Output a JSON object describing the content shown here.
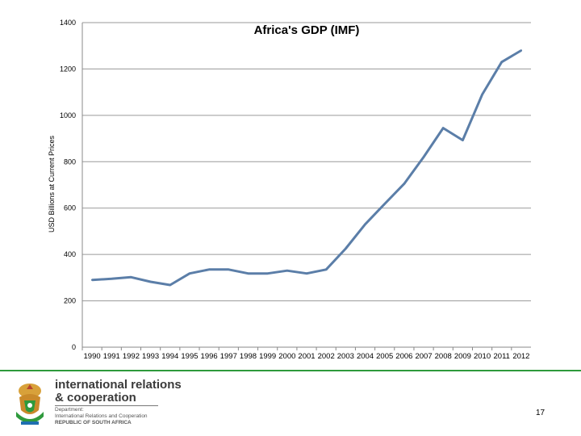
{
  "chart_data": {
    "type": "line",
    "title": "Africa's GDP (IMF)",
    "xlabel": "",
    "ylabel": "USD Billions at Current Prices",
    "x": [
      "1990",
      "1991",
      "1992",
      "1993",
      "1994",
      "1995",
      "1996",
      "1997",
      "1998",
      "1999",
      "2000",
      "2001",
      "2002",
      "2003",
      "2004",
      "2005",
      "2006",
      "2007",
      "2008",
      "2009",
      "2010",
      "2011",
      "2012"
    ],
    "series": [
      {
        "values": [
          290,
          295,
          302,
          282,
          268,
          318,
          335,
          335,
          318,
          318,
          330,
          318,
          335,
          425,
          530,
          618,
          705,
          820,
          945,
          893,
          1090,
          1230,
          1280
        ]
      }
    ],
    "ylim": [
      0,
      1400
    ],
    "yticks": [
      "0",
      "200",
      "400",
      "600",
      "800",
      "1000",
      "1200",
      "1400"
    ],
    "grid": true,
    "legend": "none",
    "line_color": "#5b7ea8",
    "grid_color": "#9a9a9a"
  },
  "footer": {
    "org_line1": "international relations",
    "org_line2": "& cooperation",
    "dept_lines": [
      "Department:",
      "International Relations and Cooperation",
      "REPUBLIC OF SOUTH AFRICA"
    ],
    "accent_color": "#2e9a3c",
    "page_number": "17"
  }
}
